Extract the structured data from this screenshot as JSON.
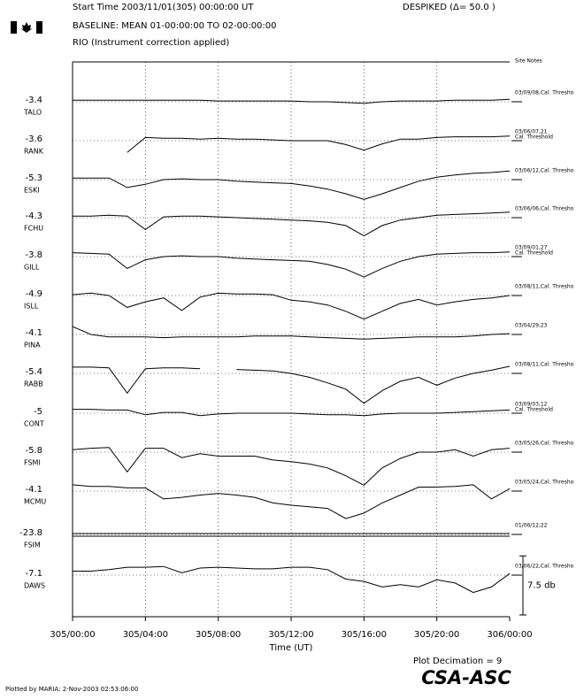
{
  "chart_data": {
    "type": "riometer-stack",
    "start_time": "Start Time 2003/11/01(305) 00:00:00 UT",
    "baseline": "BASELINE: MEAN 01-00:00:00 TO 02-00:00:00",
    "rio": "RIO (Instrument correction applied)",
    "despiked": "DESPIKED (Δ= 50.0  )",
    "site_notes": "Site Notes",
    "xlabel": "Time (UT)",
    "xlim": [
      0,
      24
    ],
    "xticks": [
      {
        "value": 0,
        "label": "305/00:00"
      },
      {
        "value": 4,
        "label": "305/04:00"
      },
      {
        "value": 8,
        "label": "305/08:00"
      },
      {
        "value": 12,
        "label": "305/12:00"
      },
      {
        "value": 16,
        "label": "305/16:00"
      },
      {
        "value": 20,
        "label": "305/20:00"
      },
      {
        "value": 24,
        "label": "306/00:00"
      }
    ],
    "grid": true,
    "color": "#000000",
    "x": [
      0,
      1,
      2,
      3,
      4,
      5,
      6,
      7,
      8,
      9,
      10,
      11,
      12,
      13,
      14,
      15,
      16,
      17,
      18,
      19,
      20,
      21,
      22,
      23,
      24
    ],
    "series": [
      {
        "name": "TALO",
        "baseline": -3.4,
        "note": [
          "03/09/08,Cal. Thresho"
        ],
        "values": [
          0.2,
          0.2,
          0.2,
          0.2,
          0.2,
          0.2,
          0.2,
          0.2,
          0.1,
          0.1,
          0.1,
          0.1,
          0.1,
          0.0,
          0.0,
          -0.1,
          -0.2,
          0.0,
          0.1,
          0.1,
          0.1,
          0.2,
          0.2,
          0.2,
          0.3
        ]
      },
      {
        "name": "RANK",
        "baseline": -3.6,
        "note": [
          "03/06/07,21",
          "Cal. Threshold"
        ],
        "values": [
          null,
          null,
          null,
          -1.5,
          0.4,
          0.3,
          0.3,
          0.2,
          0.3,
          0.2,
          0.2,
          0.1,
          0.0,
          0.0,
          0.0,
          -0.5,
          -1.2,
          -0.4,
          0.2,
          0.2,
          0.4,
          0.5,
          0.5,
          0.5,
          0.6
        ]
      },
      {
        "name": "ESKI",
        "baseline": -5.3,
        "note": [
          "03/06/12,Cal. Thresho"
        ],
        "values": [
          0.2,
          0.2,
          0.2,
          -1.0,
          -0.6,
          0.0,
          0.1,
          0.0,
          0.0,
          -0.2,
          -0.3,
          -0.4,
          -0.5,
          -0.8,
          -1.2,
          -1.8,
          -2.5,
          -1.8,
          -1.0,
          -0.2,
          0.3,
          0.6,
          0.8,
          0.9,
          1.1
        ]
      },
      {
        "name": "FCHU",
        "baseline": -4.3,
        "note": [
          "03/06/06,Cal. Thresho"
        ],
        "values": [
          0.2,
          0.2,
          0.3,
          0.2,
          -1.5,
          0.1,
          0.2,
          0.2,
          0.1,
          0.0,
          -0.1,
          -0.2,
          -0.3,
          -0.4,
          -0.6,
          -1.0,
          -2.3,
          -1.0,
          -0.3,
          0.0,
          0.3,
          0.4,
          0.5,
          0.6,
          0.7
        ]
      },
      {
        "name": "GILL",
        "baseline": -3.8,
        "note": [
          "03/09/01,27",
          "Cal. Threshold"
        ],
        "values": [
          0.5,
          0.4,
          0.3,
          -1.5,
          -0.4,
          0.0,
          0.1,
          0.0,
          0.0,
          -0.2,
          -0.3,
          -0.4,
          -0.5,
          -0.6,
          -1.0,
          -1.6,
          -2.6,
          -1.5,
          -0.6,
          0.0,
          0.3,
          0.4,
          0.5,
          0.5,
          0.6
        ]
      },
      {
        "name": "ISLL",
        "baseline": -4.9,
        "note": [
          "03/08/11,Cal. Thresho"
        ],
        "values": [
          0.1,
          0.3,
          0.0,
          -1.5,
          -0.8,
          -0.3,
          -1.9,
          -0.2,
          0.3,
          0.2,
          0.2,
          0.1,
          -0.6,
          -0.8,
          -1.2,
          -2.0,
          -3.0,
          -2.0,
          -1.0,
          -0.5,
          -1.2,
          -0.8,
          -0.5,
          -0.3,
          0.0
        ]
      },
      {
        "name": "PINA",
        "baseline": -4.1,
        "note": [
          "03/04/29,23"
        ],
        "values": [
          1.0,
          0.0,
          -0.3,
          -0.3,
          -0.3,
          -0.4,
          -0.3,
          -0.3,
          -0.3,
          -0.3,
          -0.2,
          -0.2,
          -0.2,
          -0.3,
          -0.4,
          -0.5,
          -0.6,
          -0.5,
          -0.4,
          -0.3,
          -0.3,
          -0.3,
          -0.2,
          0.0,
          0.1
        ]
      },
      {
        "name": "RABB",
        "baseline": -5.4,
        "note": [
          "03/08/11,Cal. Thresho"
        ],
        "values": [
          0.8,
          0.8,
          0.7,
          -2.5,
          0.6,
          0.7,
          0.7,
          0.6,
          null,
          0.5,
          0.4,
          0.3,
          0.0,
          -0.5,
          -1.2,
          -2.0,
          -3.8,
          -2.2,
          -1.0,
          -0.5,
          -1.5,
          -0.6,
          0.0,
          0.4,
          0.9
        ]
      },
      {
        "name": "CONT",
        "baseline": -5.0,
        "note": [
          "03/09/03,12",
          "Cal. Threshold"
        ],
        "values": [
          0.5,
          0.5,
          0.4,
          0.4,
          -0.2,
          0.1,
          0.1,
          -0.3,
          -0.1,
          0.0,
          0.0,
          0.0,
          0.0,
          -0.1,
          -0.2,
          -0.2,
          -0.3,
          -0.1,
          0.0,
          0.0,
          0.0,
          0.1,
          0.2,
          0.3,
          0.4
        ]
      },
      {
        "name": "FSMI",
        "baseline": -5.8,
        "note": [
          "03/05/26,Cal. Thresho"
        ],
        "values": [
          0.3,
          0.5,
          0.6,
          -2.5,
          0.5,
          0.5,
          -0.7,
          -0.2,
          -0.5,
          -0.5,
          -0.5,
          -1.0,
          -1.2,
          -1.5,
          -2.0,
          -3.0,
          -4.2,
          -2.0,
          -0.8,
          0.0,
          0.0,
          0.3,
          -0.5,
          0.3,
          0.5
        ]
      },
      {
        "name": "MCMU",
        "baseline": -4.1,
        "note": [
          "03/05/24,Cal. Thresho"
        ],
        "values": [
          0.8,
          0.6,
          0.6,
          0.4,
          0.4,
          -1.0,
          -0.8,
          -0.5,
          -0.3,
          -0.5,
          -0.8,
          -1.5,
          -1.8,
          -2.0,
          -2.2,
          -3.5,
          -2.8,
          -1.5,
          -0.5,
          0.5,
          0.5,
          0.6,
          0.8,
          -1.0,
          0.3
        ]
      },
      {
        "name": "FSIM",
        "baseline": -23.8,
        "note": [
          "01/06/12,22"
        ],
        "values": [
          null,
          null,
          null,
          null,
          null,
          null,
          null,
          null,
          null,
          null,
          null,
          null,
          null,
          null,
          null,
          null,
          null,
          null,
          null,
          null,
          null,
          null,
          null,
          null,
          null
        ]
      },
      {
        "name": "DAWS",
        "baseline": -7.1,
        "note": [
          "03/06/22,Cal. Thresho"
        ],
        "values": [
          0.5,
          0.5,
          0.7,
          1.0,
          1.0,
          1.1,
          0.3,
          0.9,
          1.0,
          0.9,
          0.8,
          0.8,
          1.0,
          1.0,
          0.7,
          -0.5,
          -0.8,
          -1.5,
          -1.2,
          -1.5,
          -0.6,
          -1.0,
          -2.2,
          -1.5,
          0.2
        ]
      }
    ],
    "scale": {
      "value": 7.5,
      "label": "7.5 db"
    },
    "decimation": "Plot Decimation = 9",
    "plotted_by": "Plotted by MARIA:  2-Nov-2003 02:53:06:00",
    "logo": "CSA-ASC"
  }
}
